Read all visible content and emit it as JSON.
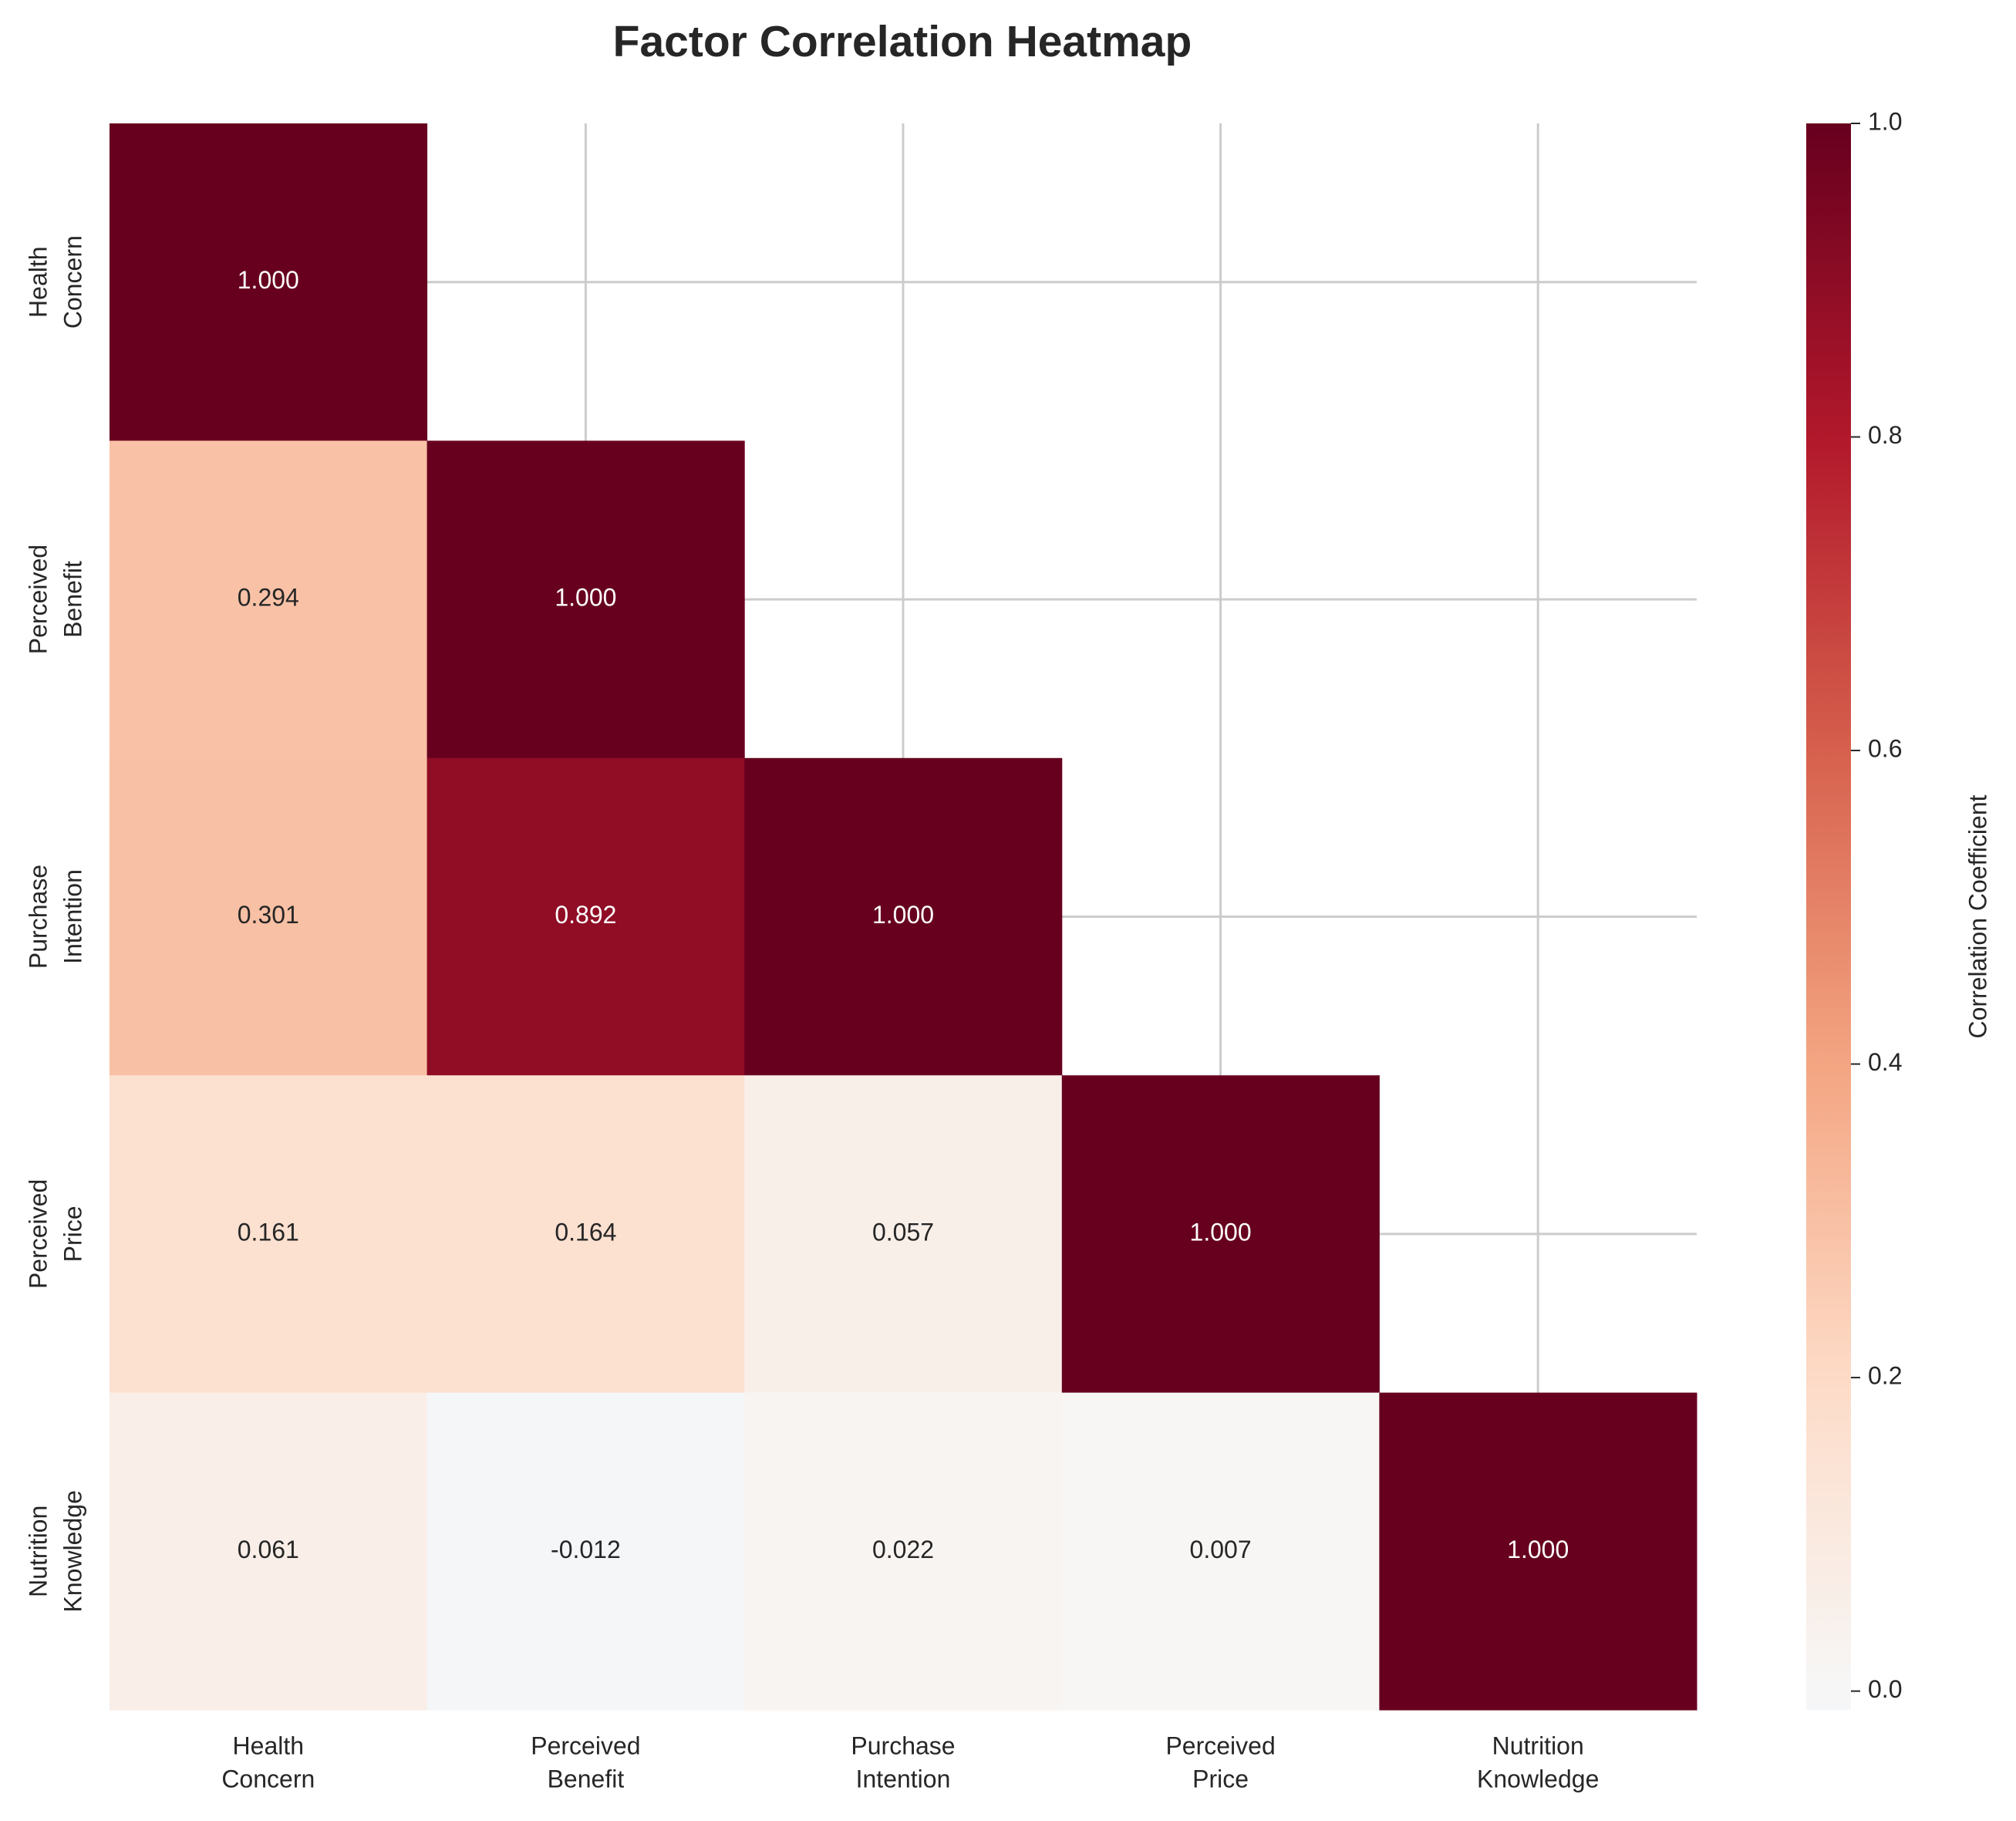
{
  "chart_data": {
    "type": "heatmap",
    "title": "Factor Correlation Heatmap",
    "x_categories": [
      "Health\nConcern",
      "Perceived\nBenefit",
      "Purchase\nIntention",
      "Perceived\nPrice",
      "Nutrition\nKnowledge"
    ],
    "y_categories": [
      "Health\nConcern",
      "Perceived\nBenefit",
      "Purchase\nIntention",
      "Perceived\nPrice",
      "Nutrition\nKnowledge"
    ],
    "values": [
      [
        1.0,
        null,
        null,
        null,
        null
      ],
      [
        0.294,
        1.0,
        null,
        null,
        null
      ],
      [
        0.301,
        0.892,
        1.0,
        null,
        null
      ],
      [
        0.161,
        0.164,
        0.057,
        1.0,
        null
      ],
      [
        0.061,
        -0.012,
        0.022,
        0.007,
        1.0
      ]
    ],
    "value_labels": [
      [
        "1.000",
        null,
        null,
        null,
        null
      ],
      [
        "0.294",
        "1.000",
        null,
        null,
        null
      ],
      [
        "0.301",
        "0.892",
        "1.000",
        null,
        null
      ],
      [
        "0.161",
        "0.164",
        "0.057",
        "1.000",
        null
      ],
      [
        "0.061",
        "-0.012",
        "0.022",
        "0.007",
        "1.000"
      ]
    ],
    "colorscale": [
      [
        -0.2,
        "#d1e5f0"
      ],
      [
        0,
        "#f7f7f7"
      ],
      [
        0.2,
        "#fddbc7"
      ],
      [
        0.4,
        "#f4a582"
      ],
      [
        0.6,
        "#d6604d"
      ],
      [
        0.8,
        "#b2182b"
      ],
      [
        1.0,
        "#67001f"
      ]
    ],
    "clim": [
      -0.012,
      1.0
    ],
    "cticks": [
      {
        "value": 0,
        "label": "0.0"
      },
      0.2,
      0.4,
      0.6,
      0.8,
      {
        "value": 1,
        "label": "1.0"
      }
    ],
    "colorbar_label": "Correlation Coefficient",
    "grid": true
  }
}
